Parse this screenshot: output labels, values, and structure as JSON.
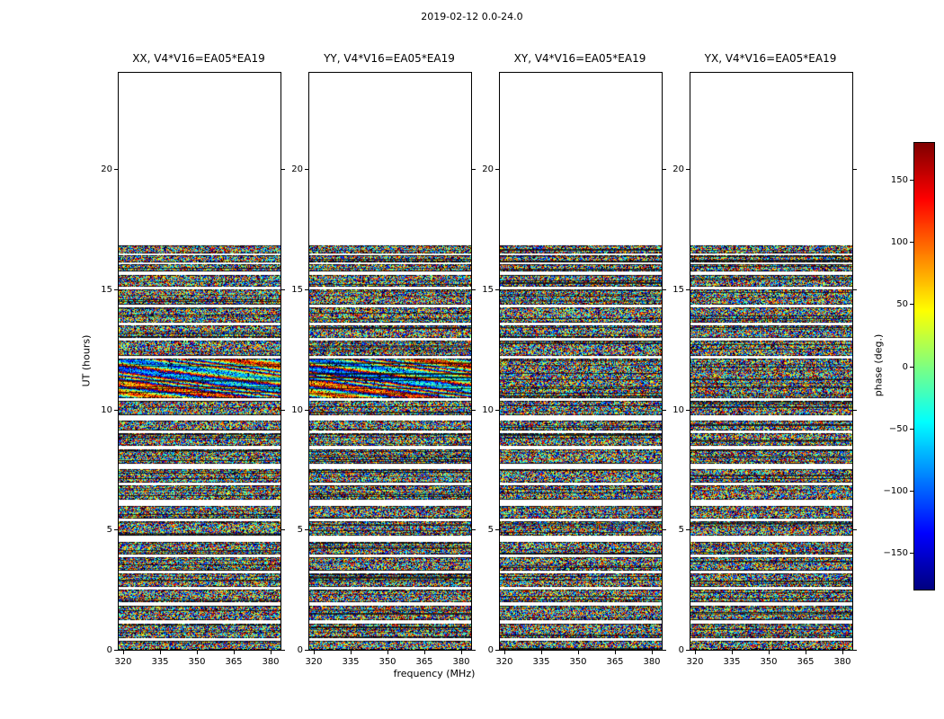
{
  "chart_data": {
    "type": "heatmap",
    "suptitle": "2019-02-12 0.0-24.0",
    "xlabel": "frequency (MHz)",
    "ylabel": "UT (hours)",
    "panels": [
      {
        "title": "XX, V4*V16=EA05*EA19",
        "polarization": "XX",
        "has_structure": true
      },
      {
        "title": "YY, V4*V16=EA05*EA19",
        "polarization": "YY",
        "has_structure": true
      },
      {
        "title": "XY, V4*V16=EA05*EA19",
        "polarization": "XY",
        "has_structure": false
      },
      {
        "title": "YX, V4*V16=EA05*EA19",
        "polarization": "YX",
        "has_structure": false
      }
    ],
    "baseline": "V4*V16=EA05*EA19",
    "x_range_mhz": [
      318,
      384
    ],
    "x_ticks": [
      320,
      335,
      350,
      365,
      380
    ],
    "y_range_hours": [
      0,
      24
    ],
    "y_ticks": [
      0,
      5,
      10,
      15,
      20
    ],
    "content": "wrapped interferometric visibility phase; noise-like speckle over scan blocks, white gaps between scans, empty (white) above the last scan",
    "data_time_extent_hours": [
      0.0,
      16.82
    ],
    "structured_region_hours": [
      10.45,
      12.1
    ],
    "scans_hours": [
      [
        0.0,
        0.38
      ],
      [
        0.5,
        1.1
      ],
      [
        1.22,
        1.85
      ],
      [
        1.97,
        2.5
      ],
      [
        2.62,
        3.18
      ],
      [
        3.3,
        3.85
      ],
      [
        3.97,
        4.5
      ],
      [
        4.75,
        5.35
      ],
      [
        5.47,
        6.0
      ],
      [
        6.25,
        6.85
      ],
      [
        6.97,
        7.5
      ],
      [
        7.75,
        8.35
      ],
      [
        8.47,
        9.0
      ],
      [
        9.12,
        9.55
      ],
      [
        9.75,
        10.35
      ],
      [
        10.45,
        12.1
      ],
      [
        12.22,
        12.85
      ],
      [
        12.97,
        13.5
      ],
      [
        13.62,
        14.25
      ],
      [
        14.37,
        15.0
      ],
      [
        15.12,
        15.6
      ],
      [
        15.72,
        16.05
      ],
      [
        16.12,
        16.42
      ],
      [
        16.48,
        16.82
      ]
    ],
    "colorbar": {
      "label": "phase (deg.)",
      "colormap": "jet",
      "min": -180,
      "max": 180,
      "ticks": [
        150,
        100,
        50,
        0,
        -50,
        -100,
        -150
      ],
      "tick_labels": [
        "150",
        "100",
        "50",
        "0",
        "−50",
        "−100",
        "−150"
      ]
    }
  }
}
